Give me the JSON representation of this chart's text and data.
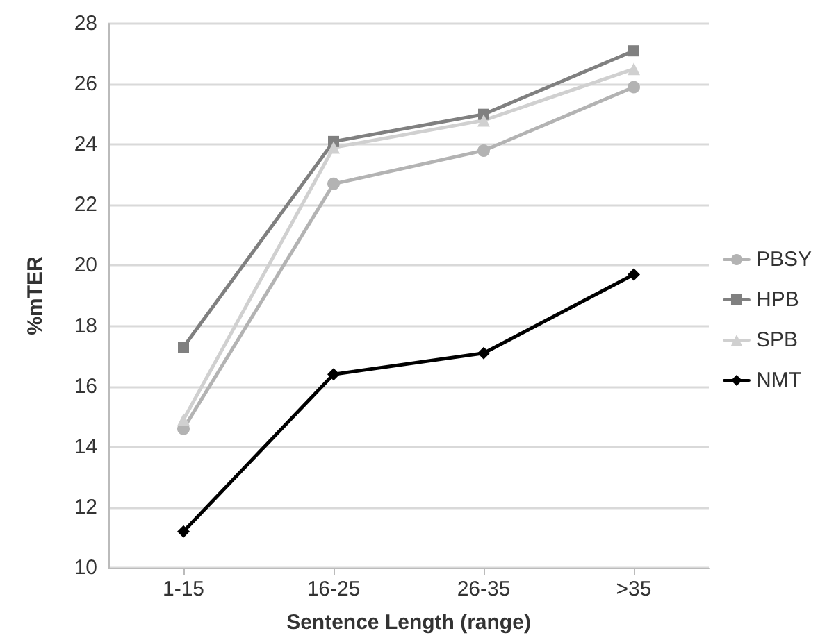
{
  "chart_data": {
    "type": "line",
    "xlabel": "Sentence Length (range)",
    "ylabel": "%mTER",
    "categories": [
      "1-15",
      "16-25",
      "26-35",
      ">35"
    ],
    "series": [
      {
        "name": "PBSY",
        "color": "#b3b3b3",
        "marker": "circle",
        "values": [
          14.6,
          22.7,
          23.8,
          25.9
        ]
      },
      {
        "name": "HPB",
        "color": "#808080",
        "marker": "square",
        "values": [
          17.3,
          24.1,
          25.0,
          27.1
        ]
      },
      {
        "name": "SPB",
        "color": "#d0d0d0",
        "marker": "triangle",
        "values": [
          14.9,
          23.9,
          24.8,
          26.5
        ]
      },
      {
        "name": "NMT",
        "color": "#000000",
        "marker": "diamond",
        "values": [
          11.2,
          16.4,
          17.1,
          19.7
        ]
      }
    ],
    "ylim": [
      10,
      28
    ],
    "yticks": [
      10,
      12,
      14,
      16,
      18,
      20,
      22,
      24,
      26,
      28
    ],
    "grid": "y",
    "legend": "right"
  }
}
